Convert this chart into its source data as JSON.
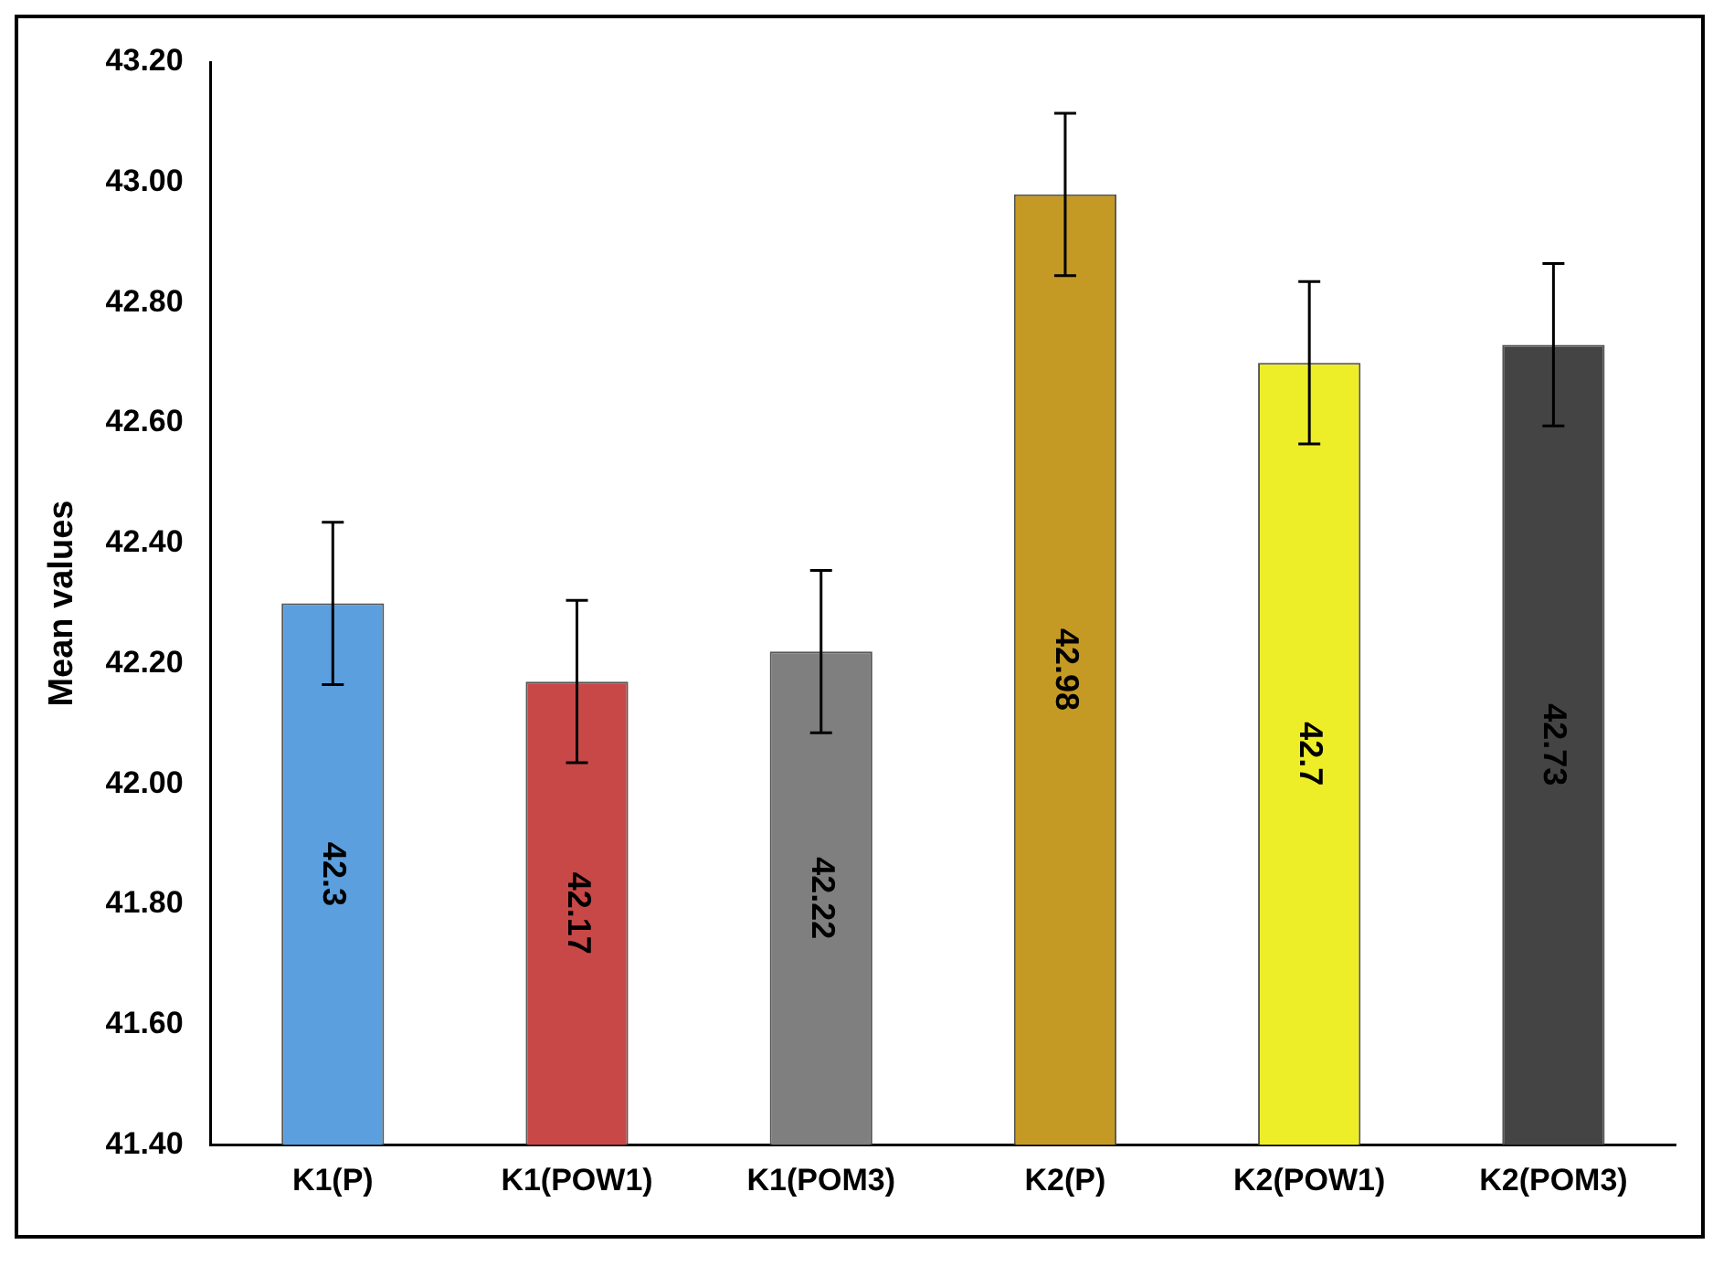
{
  "chart_data": {
    "type": "bar",
    "ylabel": "Mean values",
    "categories": [
      "K1(P)",
      "K1(POW1)",
      "K1(POM3)",
      "K2(P)",
      "K2(POW1)",
      "K2(POM3)"
    ],
    "values": [
      42.3,
      42.17,
      42.22,
      42.98,
      42.7,
      42.73
    ],
    "colors": [
      "#5b9fdf",
      "#c84848",
      "#7f7f7f",
      "#c59a24",
      "#eeee28",
      "#444444"
    ],
    "errors": [
      0.135,
      0.135,
      0.135,
      0.135,
      0.135,
      0.135
    ],
    "ylim": [
      41.4,
      43.2
    ],
    "yticks": [
      {
        "value": 41.4,
        "label": "41.40"
      },
      {
        "value": 41.6,
        "label": "41.60"
      },
      {
        "value": 41.8,
        "label": "41.80"
      },
      {
        "value": 42,
        "label": "42.00"
      },
      {
        "value": 42.2,
        "label": "42.20"
      },
      {
        "value": 42.4,
        "label": "42.40"
      },
      {
        "value": 42.6,
        "label": "42.60"
      },
      {
        "value": 42.8,
        "label": "42.80"
      },
      {
        "value": 43,
        "label": "43.00"
      },
      {
        "value": 43.2,
        "label": "43.20"
      }
    ],
    "data_labels": true,
    "grid": false,
    "legend": false
  }
}
